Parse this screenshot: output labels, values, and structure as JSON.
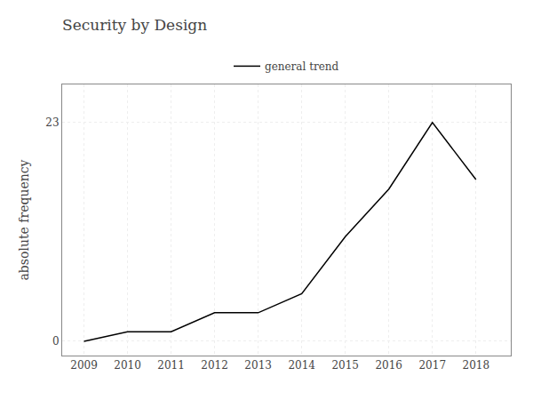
{
  "chart_data": {
    "type": "line",
    "title": "Security by Design",
    "ylabel": "absolute frequency",
    "x": [
      2009,
      2010,
      2011,
      2012,
      2013,
      2014,
      2015,
      2016,
      2017,
      2018
    ],
    "series": [
      {
        "name": "general trend",
        "color": "#000000",
        "values": [
          0,
          1,
          1,
          3,
          3,
          5,
          11,
          16,
          23,
          17
        ]
      }
    ],
    "xlim": [
      2008.5,
      2018.8
    ],
    "xticks": [
      2009,
      2010,
      2011,
      2012,
      2013,
      2014,
      2015,
      2016,
      2017,
      2018
    ],
    "ylim": [
      -1.5,
      27
    ],
    "yticks": [
      0,
      23
    ],
    "grid": true,
    "legend": "top"
  }
}
